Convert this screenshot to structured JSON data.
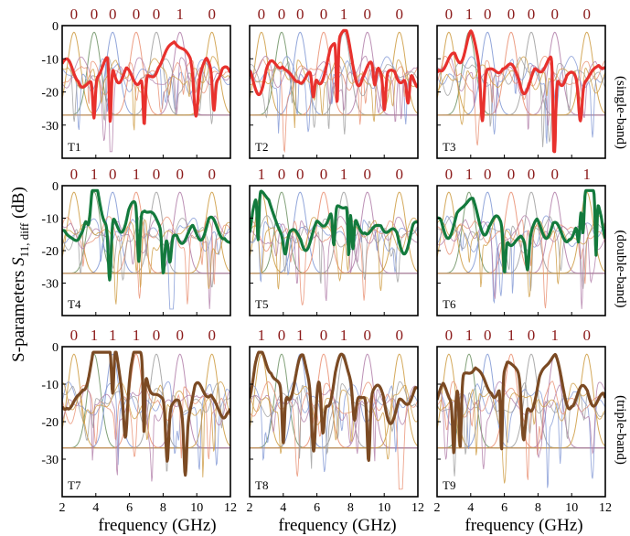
{
  "chart_data": {
    "type": "line",
    "ylabel_prefix": "S-parameters ",
    "ylabel_sym": "S",
    "ylabel_sub": "11, diff",
    "ylabel_suffix": " (dB)",
    "xlabel": "frequency (GHz)",
    "x_ticks": [
      "2",
      "4",
      "6",
      "8",
      "10",
      "12"
    ],
    "y_ticks": [
      "0",
      "-10",
      "-20",
      "-30"
    ],
    "xlim": [
      2,
      12
    ],
    "ylim": [
      -40,
      0
    ],
    "row_labels": [
      "(single-band)",
      "(double-band)",
      "(triple-band)"
    ],
    "colors": {
      "single": "#e8312d",
      "double": "#137a3d",
      "triple": "#7b4a23",
      "bit": "#8b1a1a",
      "background_palette": [
        "#cd9a3e",
        "#6c9062",
        "#7f96d4",
        "#e98d6f",
        "#9c9c9c",
        "#b07ca8"
      ]
    },
    "band_centers_ghz": [
      2.7,
      3.9,
      5.0,
      6.4,
      7.6,
      9.0,
      10.9
    ],
    "panels": [
      {
        "tag": "T1",
        "bits": [
          "0",
          "0",
          "0",
          "0",
          "0",
          "1",
          "0"
        ],
        "band": "single"
      },
      {
        "tag": "T2",
        "bits": [
          "0",
          "0",
          "0",
          "0",
          "1",
          "0",
          "0"
        ],
        "band": "single"
      },
      {
        "tag": "T3",
        "bits": [
          "0",
          "1",
          "0",
          "0",
          "0",
          "0",
          "0"
        ],
        "band": "single"
      },
      {
        "tag": "T4",
        "bits": [
          "0",
          "1",
          "0",
          "1",
          "0",
          "0",
          "0"
        ],
        "band": "double"
      },
      {
        "tag": "T5",
        "bits": [
          "1",
          "0",
          "0",
          "0",
          "1",
          "0",
          "0"
        ],
        "band": "double"
      },
      {
        "tag": "T6",
        "bits": [
          "0",
          "1",
          "0",
          "0",
          "0",
          "0",
          "1"
        ],
        "band": "double"
      },
      {
        "tag": "T7",
        "bits": [
          "0",
          "1",
          "1",
          "1",
          "0",
          "0",
          "0"
        ],
        "band": "triple"
      },
      {
        "tag": "T8",
        "bits": [
          "1",
          "0",
          "1",
          "0",
          "1",
          "0",
          "0"
        ],
        "band": "triple"
      },
      {
        "tag": "T9",
        "bits": [
          "0",
          "1",
          "0",
          "1",
          "0",
          "1",
          "0"
        ],
        "band": "triple"
      }
    ]
  }
}
